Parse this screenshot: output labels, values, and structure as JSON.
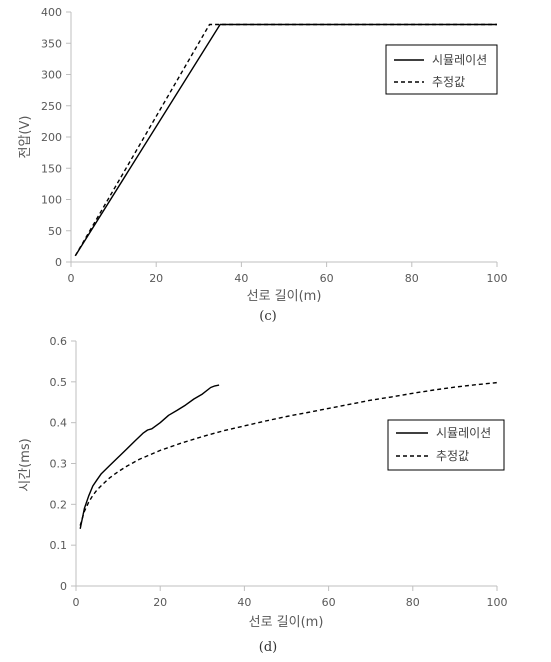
{
  "chart_data": [
    {
      "type": "line",
      "caption": "(c)",
      "xlabel": "선로 길이(m)",
      "ylabel": "전압(V)",
      "xlim": [
        0,
        100
      ],
      "ylim": [
        0,
        400
      ],
      "xticks": [
        0,
        20,
        40,
        60,
        80,
        100
      ],
      "yticks": [
        0,
        50,
        100,
        150,
        200,
        250,
        300,
        350,
        400
      ],
      "grid": false,
      "legend_position": "right",
      "series": [
        {
          "name": "시뮬레이션",
          "style": "solid",
          "color": "#000000",
          "points": [
            [
              1,
              10
            ],
            [
              35,
              380
            ],
            [
              100,
              380
            ]
          ]
        },
        {
          "name": "추정값",
          "style": "dashed",
          "color": "#000000",
          "points": [
            [
              1,
              10
            ],
            [
              32.5,
              380
            ],
            [
              100,
              380
            ]
          ]
        }
      ]
    },
    {
      "type": "line",
      "caption": "(d)",
      "xlabel": "선로 길이(m)",
      "ylabel": "시간(ms)",
      "xlim": [
        0,
        100
      ],
      "ylim": [
        0,
        0.6
      ],
      "xticks": [
        0,
        20,
        40,
        60,
        80,
        100
      ],
      "yticks": [
        0,
        0.1,
        0.2,
        0.3,
        0.4,
        0.5,
        0.6
      ],
      "grid": false,
      "legend_position": "right",
      "series": [
        {
          "name": "시뮬레이션",
          "style": "solid",
          "color": "#000000",
          "points": [
            [
              1,
              0.14
            ],
            [
              2,
              0.19
            ],
            [
              3,
              0.22
            ],
            [
              4,
              0.245
            ],
            [
              5,
              0.26
            ],
            [
              6,
              0.275
            ],
            [
              8,
              0.295
            ],
            [
              10,
              0.315
            ],
            [
              12,
              0.335
            ],
            [
              14,
              0.355
            ],
            [
              16,
              0.375
            ],
            [
              17,
              0.382
            ],
            [
              18,
              0.385
            ],
            [
              20,
              0.4
            ],
            [
              22,
              0.418
            ],
            [
              24,
              0.43
            ],
            [
              26,
              0.443
            ],
            [
              28,
              0.458
            ],
            [
              30,
              0.47
            ],
            [
              32,
              0.486
            ],
            [
              33,
              0.49
            ],
            [
              34,
              0.492
            ]
          ]
        },
        {
          "name": "추정값",
          "style": "dashed",
          "color": "#000000",
          "points": [
            [
              1,
              0.148
            ],
            [
              2,
              0.183
            ],
            [
              3,
              0.205
            ],
            [
              4,
              0.222
            ],
            [
              5,
              0.235
            ],
            [
              6,
              0.246
            ],
            [
              8,
              0.265
            ],
            [
              10,
              0.28
            ],
            [
              12,
              0.293
            ],
            [
              15,
              0.31
            ],
            [
              20,
              0.332
            ],
            [
              25,
              0.35
            ],
            [
              30,
              0.366
            ],
            [
              35,
              0.38
            ],
            [
              40,
              0.392
            ],
            [
              45,
              0.404
            ],
            [
              50,
              0.415
            ],
            [
              55,
              0.425
            ],
            [
              60,
              0.435
            ],
            [
              65,
              0.445
            ],
            [
              70,
              0.455
            ],
            [
              75,
              0.463
            ],
            [
              80,
              0.472
            ],
            [
              85,
              0.48
            ],
            [
              90,
              0.487
            ],
            [
              95,
              0.493
            ],
            [
              100,
              0.498
            ]
          ]
        }
      ]
    }
  ]
}
